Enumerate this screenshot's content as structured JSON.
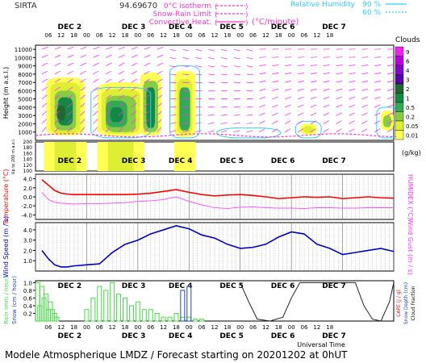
{
  "header": {
    "site": "SIRTA",
    "coords": "94.69",
    "coords_tail": "670",
    "legend_left": [
      {
        "label": "0°C isotherm",
        "color": "#ff33cc"
      },
      {
        "label": "Snow-Rain Limit",
        "color": "#ff33cc"
      },
      {
        "label": "Convective Heat.",
        "color": "#ff33cc"
      }
    ],
    "legend_unit": "(°C/minute)",
    "legend_right": [
      {
        "label": "Relative Humidity",
        "value": "90 %",
        "color": "#33ccff"
      },
      {
        "label": "",
        "value": "60 %",
        "color": "#33ccff"
      }
    ]
  },
  "time_axis": {
    "days": [
      "DEC  2",
      "DEC  3",
      "DEC  4",
      "DEC  5",
      "DEC  6",
      "DEC  7"
    ],
    "hours": [
      "06",
      "12",
      "18",
      "00",
      "06",
      "12",
      "18",
      "00",
      "06",
      "12",
      "18",
      "00",
      "06",
      "12",
      "18",
      "00",
      "06",
      "12",
      "18",
      "00",
      "06",
      "12",
      "18"
    ],
    "xlabel": "Universal Time"
  },
  "clouds_legend": {
    "title": "Clouds",
    "unit": "(g/kg)",
    "levels": [
      "9",
      "6",
      "4",
      "3",
      "2",
      "1",
      "0.5",
      "0.2",
      "0.05",
      "0.01"
    ],
    "colors": [
      "#ee22ee",
      "#bb00dd",
      "#8800cc",
      "#5500aa",
      "#226633",
      "#118844",
      "#33aa55",
      "#88cc44",
      "#ddee33",
      "#ffff55"
    ]
  },
  "footer": {
    "text": "Modele Atmospherique LMDZ / Forecast starting on 20201202 at 0hUT"
  },
  "chart_data": [
    {
      "type": "heatmap",
      "title": "Clouds",
      "ylabel": "Height (m a.s.l.)",
      "ylabel2": "Up to 200 m a.s.l.",
      "y_ticks": [
        1000,
        2000,
        3000,
        4000,
        5000,
        6000,
        7000,
        8000,
        9000,
        10000,
        11000
      ],
      "y_ticks_low": [
        100,
        120,
        140,
        160,
        180,
        200
      ],
      "ylim": [
        0,
        11500
      ]
    },
    {
      "type": "line",
      "ylabel": "Temperature (°C)",
      "ylabel_right": "HUMIDEX (°C)",
      "y_ticks": [
        -4.0,
        -2.0,
        0.0,
        2.0,
        4.0
      ],
      "ylim": [
        -5,
        5
      ],
      "x": [
        3,
        6,
        9,
        12,
        15,
        18,
        24,
        30,
        36,
        42,
        48,
        54,
        60,
        66,
        72,
        78,
        84,
        90,
        96,
        102,
        108,
        114,
        120,
        126,
        132,
        138,
        144,
        150,
        156,
        162,
        168
      ],
      "series": [
        {
          "name": "Temperature",
          "color": "#ff0000",
          "values": [
            3.8,
            2.6,
            1.4,
            0.8,
            0.6,
            0.5,
            0.5,
            0.5,
            0.5,
            0.5,
            0.6,
            0.8,
            1.2,
            1.6,
            1.0,
            0.5,
            0.2,
            0.4,
            0.5,
            0.3,
            0.0,
            -0.4,
            -0.2,
            0.0,
            -0.1,
            0.0,
            -0.4,
            -0.2,
            0.0,
            -0.2,
            -0.3
          ]
        },
        {
          "name": "HUMIDEX",
          "color": "#ff55ff",
          "values": [
            1.0,
            -0.6,
            -1.2,
            -1.4,
            -1.5,
            -1.6,
            -1.5,
            -1.5,
            -1.4,
            -1.3,
            -1.0,
            -0.9,
            -0.6,
            0.0,
            -1.0,
            -1.8,
            -2.4,
            -2.6,
            -2.3,
            -2.2,
            -2.4,
            -2.5,
            -2.5,
            -2.6,
            -2.4,
            -2.4,
            -2.5,
            -2.5,
            -2.4,
            -2.4,
            -2.4
          ]
        }
      ]
    },
    {
      "type": "line",
      "ylabel": "Wind Speed (m / s)",
      "ylabel_right": "Wind Gust (m / s)",
      "y_ticks": [
        1.0,
        2.0,
        3.0,
        4.0
      ],
      "ylim": [
        0,
        4.7
      ],
      "x": [
        3,
        6,
        9,
        12,
        15,
        18,
        24,
        30,
        36,
        42,
        48,
        54,
        60,
        66,
        72,
        78,
        84,
        90,
        96,
        102,
        108,
        114,
        120,
        126,
        132,
        138,
        144,
        150,
        156,
        162,
        168
      ],
      "series": [
        {
          "name": "Wind Speed",
          "color": "#0000cc",
          "values": [
            2.0,
            1.2,
            0.6,
            0.4,
            0.4,
            0.5,
            0.6,
            0.7,
            1.8,
            2.6,
            3.0,
            3.6,
            4.0,
            4.4,
            4.1,
            3.5,
            3.2,
            2.6,
            2.2,
            2.3,
            2.6,
            3.3,
            3.8,
            3.6,
            2.6,
            2.2,
            1.6,
            1.8,
            2.0,
            2.2,
            1.9
          ]
        }
      ]
    },
    {
      "type": "bar",
      "ylabel": "Rain (mm / hour)",
      "ylabel2": "Snow (cm / hour)",
      "ylabel_right": "CAPE (J / g)",
      "ylabel_right2": "Snow Depth (cm)",
      "ylabel_right3": "Cloud Fraction",
      "y_ticks": [
        0.2,
        0.4,
        0.6,
        0.8,
        1.0
      ],
      "ylim": [
        0,
        1.05
      ],
      "x": [
        1,
        2,
        3,
        4,
        5,
        6,
        7,
        8,
        9,
        10,
        24,
        27,
        30,
        33,
        36,
        39,
        42,
        45,
        48,
        51,
        54,
        57,
        60,
        63,
        66,
        69,
        72,
        75,
        78
      ],
      "series": [
        {
          "name": "Rain",
          "color": "#44dd44",
          "values": [
            1.0,
            0.4,
            0.9,
            0.6,
            0.7,
            0.3,
            0.5,
            0.3,
            0.2,
            0.1,
            0.3,
            0.6,
            0.9,
            0.8,
            1.0,
            0.7,
            0.6,
            0.4,
            0.5,
            0.3,
            0.3,
            0.2,
            0.1,
            0.1,
            0.2,
            0.1,
            0.1,
            0.05,
            0.05
          ]
        },
        {
          "name": "Snow",
          "color": "#2244cc",
          "values": [
            0,
            0,
            0,
            0,
            0,
            0,
            0,
            0,
            0,
            0,
            0,
            0,
            0,
            0,
            0,
            0,
            0,
            0,
            0,
            0,
            0,
            0,
            0,
            0,
            0,
            0.8,
            0.9,
            0,
            0
          ]
        }
      ],
      "cloud_fraction": {
        "color": "#222222",
        "x": [
          96,
          100,
          104,
          110,
          116,
          120,
          124,
          150,
          154,
          158,
          162,
          166,
          168
        ],
        "values": [
          1.0,
          0.5,
          0.05,
          0.0,
          0.1,
          0.6,
          1.0,
          1.0,
          0.4,
          0.05,
          0.0,
          0.5,
          1.0
        ]
      }
    }
  ]
}
